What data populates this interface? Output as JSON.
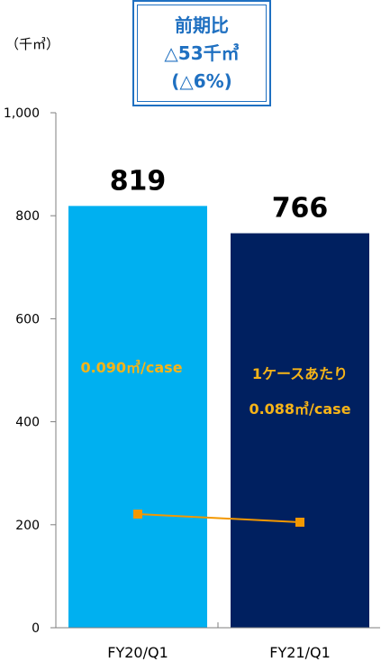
{
  "unit_label": "（千㎥）",
  "callout": {
    "lines": [
      "前期比",
      "△53千㎥",
      "(△6%)"
    ]
  },
  "colors": {
    "bar_fy20": "#00b0f0",
    "bar_fy21": "#002060",
    "ratio_line": "#f39800",
    "ratio_text": "#f6b418",
    "callout_border": "#1f70c1",
    "callout_text": "#1f70c1"
  },
  "chart_data": {
    "type": "bar",
    "categories": [
      "FY20/Q1",
      "FY21/Q1"
    ],
    "values": [
      819,
      766
    ],
    "value_labels": [
      "819",
      "766"
    ],
    "ylim": [
      0,
      1000
    ],
    "yticks": [
      0,
      200,
      400,
      600,
      800,
      1000
    ],
    "ytick_labels": [
      "0",
      "200",
      "400",
      "600",
      "800",
      "1,000"
    ],
    "grid": false,
    "overlay_line": {
      "values": [
        0.09,
        0.088
      ],
      "labels": [
        "0.090㎥/case",
        "0.088㎥/case"
      ],
      "series_label": "1ケースあたり"
    }
  }
}
